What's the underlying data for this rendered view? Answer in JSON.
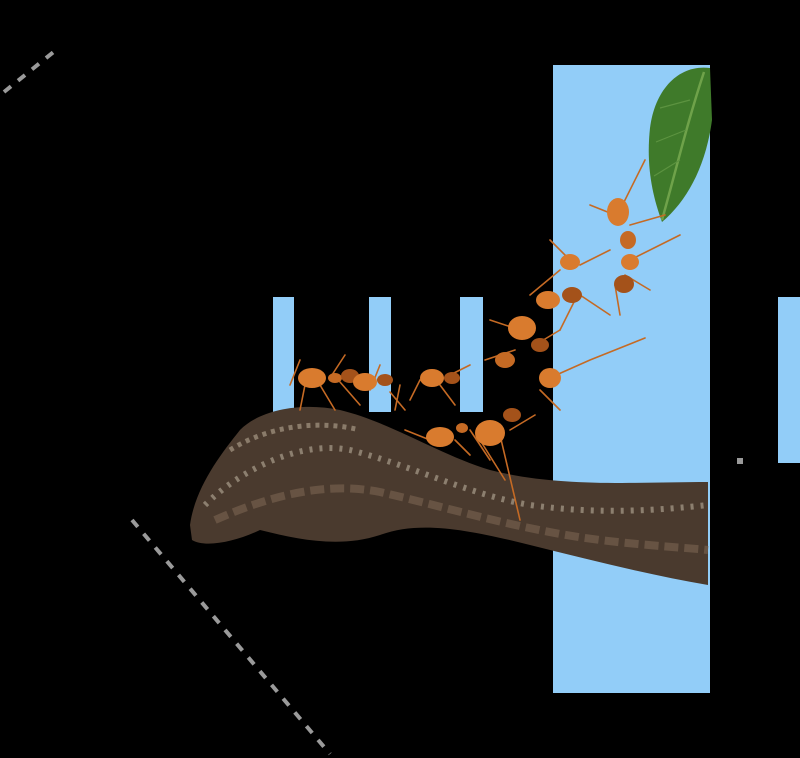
{
  "scene": {
    "subject": "ants-bridging-branch-to-leaf",
    "colors": {
      "background": "#000000",
      "accent_blue": "#92CDF8",
      "branch_dark": "#4A3A2E",
      "branch_mid": "#6E5A48",
      "branch_light": "#A89C8C",
      "ant_body": "#D97B2E",
      "ant_dark": "#A4521A",
      "leaf": "#3F7A2A",
      "leaf_light": "#6FA24A",
      "dash": "#9A9A9A"
    },
    "icons": [
      "ant-icon",
      "leaf-icon",
      "branch-icon"
    ]
  }
}
